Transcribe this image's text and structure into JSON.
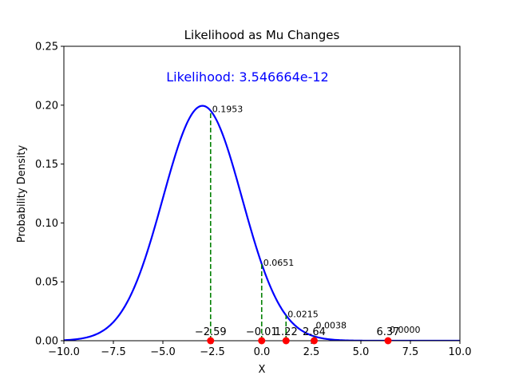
{
  "chart_data": {
    "type": "line",
    "title": "Likelihood as Mu Changes",
    "xlabel": "X",
    "ylabel": "Probability Density",
    "xlim": [
      -10,
      10
    ],
    "ylim": [
      0,
      0.25
    ],
    "x_ticks": [
      "−10.0",
      "−7.5",
      "−5.0",
      "−2.5",
      "0.0",
      "2.5",
      "5.0",
      "7.5",
      "10.0"
    ],
    "x_tick_values": [
      -10,
      -7.5,
      -5,
      -2.5,
      0,
      2.5,
      5,
      7.5,
      10
    ],
    "y_ticks": [
      "0.00",
      "0.05",
      "0.10",
      "0.15",
      "0.20",
      "0.25"
    ],
    "y_tick_values": [
      0,
      0.05,
      0.1,
      0.15,
      0.2,
      0.25
    ],
    "grid": false,
    "curve": {
      "distribution": "normal",
      "mu": -3.0,
      "sigma": 2.0,
      "color": "#0000ff"
    },
    "annotation": {
      "text": "Likelihood: 3.546664e-12",
      "color": "#0000ff"
    },
    "points": [
      {
        "x": -2.59,
        "label": "−2.59",
        "density": 0.1953,
        "density_label": "0.1953"
      },
      {
        "x": -0.01,
        "label": "−0.01",
        "density": 0.0651,
        "density_label": "0.0651"
      },
      {
        "x": 1.22,
        "label": "1.22",
        "density": 0.0215,
        "density_label": "0.0215"
      },
      {
        "x": 2.64,
        "label": "2.64",
        "density": 0.0038,
        "density_label": "0.0038"
      },
      {
        "x": 6.37,
        "label": "6.37",
        "density": 0.0,
        "density_label": "0.0000"
      }
    ],
    "point_color": "#ff0000",
    "line_color": "#008000"
  }
}
